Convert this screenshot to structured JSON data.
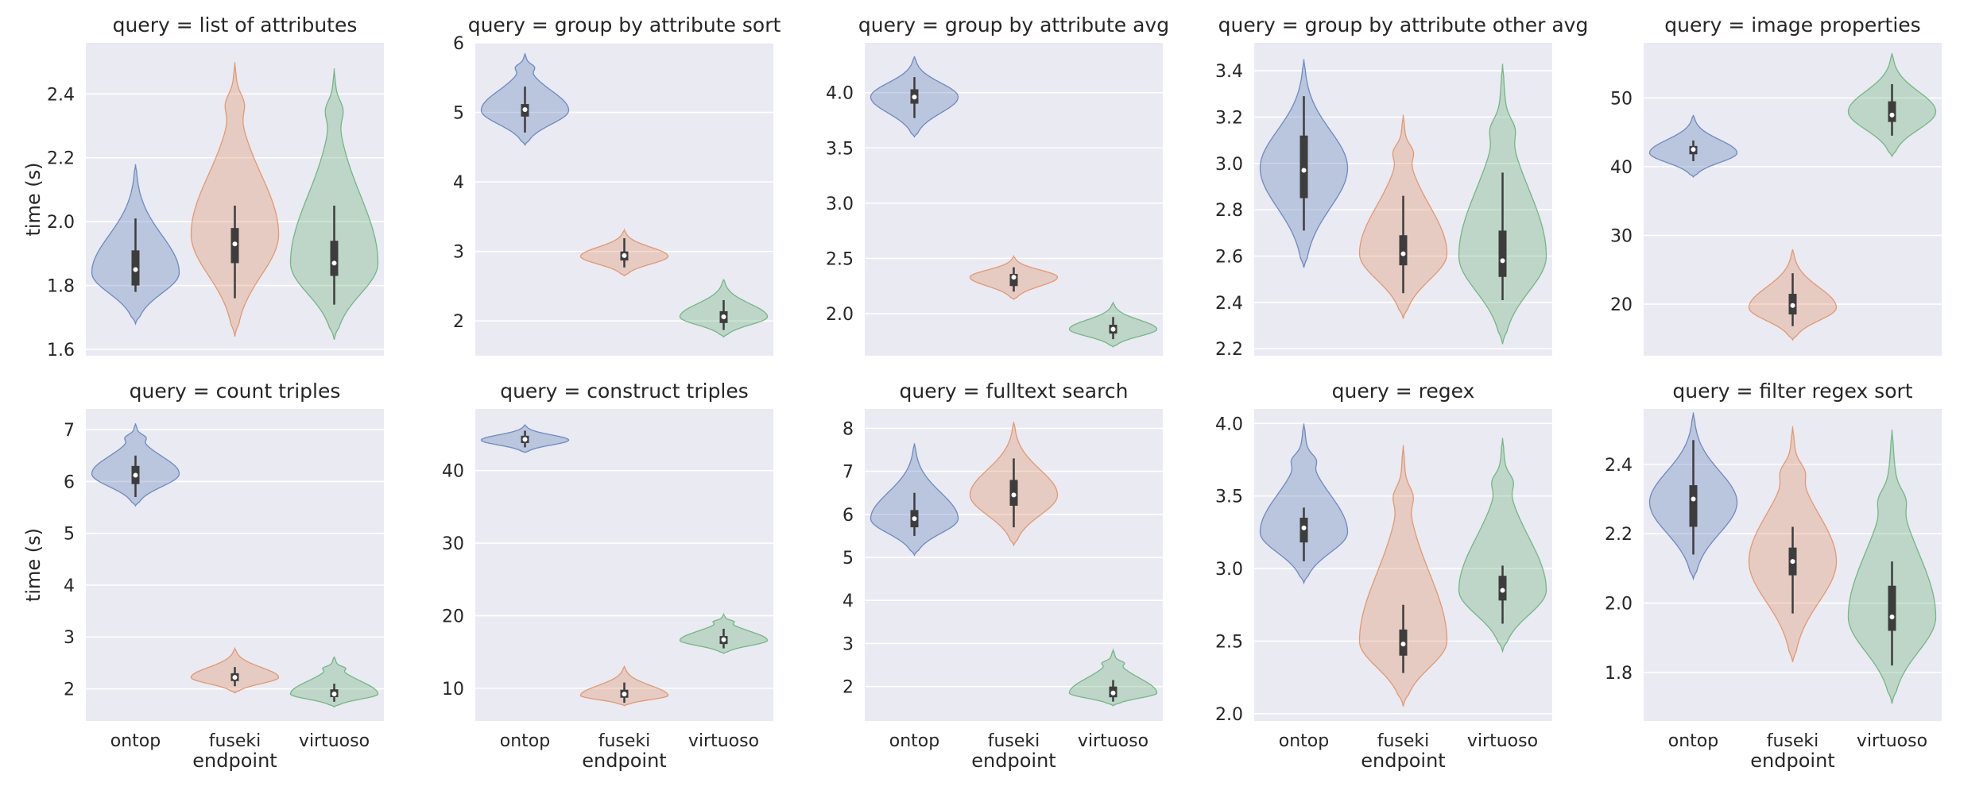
{
  "chart_data": {
    "type": "violin",
    "style": {
      "background": "#eaeaf2",
      "grid": true,
      "grid_color": "#ffffff",
      "series_colors": {
        "ontop": "#4c72b0",
        "fuseki": "#dd8452",
        "virtuoso": "#55a868"
      },
      "fill_opacity": 0.3
    },
    "layout": {
      "rows": 2,
      "cols": 5,
      "share_x_labels_on_bottom_row": true
    },
    "xlabel": "endpoint",
    "ylabel": "time (s)",
    "categories": [
      "ontop",
      "fuseki",
      "virtuoso"
    ],
    "panels": [
      {
        "title": "query = list of attributes",
        "ylim": [
          1.58,
          2.56
        ],
        "yticks": [
          "1.6",
          "1.8",
          "2.0",
          "2.2",
          "2.4"
        ],
        "violins": [
          {
            "category": "ontop",
            "min": 1.68,
            "max": 2.18,
            "peak": 1.84,
            "median": 1.85,
            "q1": 1.8,
            "q3": 1.91,
            "wlo": 1.78,
            "whi": 2.01,
            "tail_bumps": []
          },
          {
            "category": "fuseki",
            "min": 1.64,
            "max": 2.5,
            "peak": 1.96,
            "median": 1.93,
            "q1": 1.87,
            "q3": 1.98,
            "wlo": 1.76,
            "whi": 2.05,
            "tail_bumps": [
              2.37
            ]
          },
          {
            "category": "virtuoso",
            "min": 1.63,
            "max": 2.48,
            "peak": 1.87,
            "median": 1.87,
            "q1": 1.83,
            "q3": 1.94,
            "wlo": 1.74,
            "whi": 2.05,
            "tail_bumps": [
              2.35
            ]
          }
        ]
      },
      {
        "title": "query = group by attribute sort",
        "ylim": [
          1.5,
          6.0
        ],
        "yticks": [
          "2",
          "3",
          "4",
          "5",
          "6"
        ],
        "violins": [
          {
            "category": "ontop",
            "min": 4.53,
            "max": 5.85,
            "peak": 5.03,
            "median": 5.04,
            "q1": 4.94,
            "q3": 5.12,
            "wlo": 4.71,
            "whi": 5.37,
            "tail_bumps": [
              5.65
            ]
          },
          {
            "category": "fuseki",
            "min": 2.65,
            "max": 3.31,
            "peak": 2.93,
            "median": 2.94,
            "q1": 2.87,
            "q3": 3.0,
            "wlo": 2.77,
            "whi": 3.19,
            "tail_bumps": []
          },
          {
            "category": "virtuoso",
            "min": 1.77,
            "max": 2.6,
            "peak": 2.06,
            "median": 2.06,
            "q1": 1.97,
            "q3": 2.14,
            "wlo": 1.87,
            "whi": 2.3,
            "tail_bumps": []
          }
        ]
      },
      {
        "title": "query = group by attribute avg",
        "ylim": [
          1.62,
          4.45
        ],
        "yticks": [
          "2.0",
          "2.5",
          "3.0",
          "3.5",
          "4.0"
        ],
        "violins": [
          {
            "category": "ontop",
            "min": 3.6,
            "max": 4.33,
            "peak": 3.96,
            "median": 3.96,
            "q1": 3.9,
            "q3": 4.03,
            "wlo": 3.77,
            "whi": 4.14,
            "tail_bumps": []
          },
          {
            "category": "fuseki",
            "min": 2.13,
            "max": 2.52,
            "peak": 2.33,
            "median": 2.33,
            "q1": 2.25,
            "q3": 2.36,
            "wlo": 2.2,
            "whi": 2.42,
            "tail_bumps": []
          },
          {
            "category": "virtuoso",
            "min": 1.7,
            "max": 2.1,
            "peak": 1.86,
            "median": 1.86,
            "q1": 1.82,
            "q3": 1.9,
            "wlo": 1.77,
            "whi": 1.97,
            "tail_bumps": []
          }
        ]
      },
      {
        "title": "query = group by attribute other avg",
        "ylim": [
          2.17,
          3.52
        ],
        "yticks": [
          "2.2",
          "2.4",
          "2.6",
          "2.8",
          "3.0",
          "3.2",
          "3.4"
        ],
        "violins": [
          {
            "category": "ontop",
            "min": 2.55,
            "max": 3.45,
            "peak": 2.98,
            "median": 2.97,
            "q1": 2.85,
            "q3": 3.12,
            "wlo": 2.71,
            "whi": 3.29,
            "tail_bumps": []
          },
          {
            "category": "fuseki",
            "min": 2.33,
            "max": 3.21,
            "peak": 2.61,
            "median": 2.61,
            "q1": 2.56,
            "q3": 2.69,
            "wlo": 2.44,
            "whi": 2.86,
            "tail_bumps": [
              3.05
            ]
          },
          {
            "category": "virtuoso",
            "min": 2.22,
            "max": 3.43,
            "peak": 2.6,
            "median": 2.58,
            "q1": 2.51,
            "q3": 2.71,
            "wlo": 2.41,
            "whi": 2.96,
            "tail_bumps": [
              3.15
            ]
          }
        ]
      },
      {
        "title": "query = image properties",
        "ylim": [
          12.5,
          58.0
        ],
        "yticks": [
          "20",
          "30",
          "40",
          "50"
        ],
        "violins": [
          {
            "category": "ontop",
            "min": 38.5,
            "max": 47.5,
            "peak": 42.0,
            "median": 42.5,
            "q1": 41.8,
            "q3": 43.0,
            "wlo": 40.8,
            "whi": 43.8,
            "tail_bumps": []
          },
          {
            "category": "fuseki",
            "min": 14.8,
            "max": 28.0,
            "peak": 19.5,
            "median": 19.8,
            "q1": 18.5,
            "q3": 21.5,
            "wlo": 16.8,
            "whi": 24.5,
            "tail_bumps": []
          },
          {
            "category": "virtuoso",
            "min": 41.5,
            "max": 56.5,
            "peak": 48.0,
            "median": 47.5,
            "q1": 46.5,
            "q3": 49.5,
            "wlo": 44.5,
            "whi": 52.0,
            "tail_bumps": []
          }
        ]
      },
      {
        "title": "query = count triples",
        "ylim": [
          1.38,
          7.4
        ],
        "yticks": [
          "2",
          "3",
          "4",
          "5",
          "6",
          "7"
        ],
        "violins": [
          {
            "category": "ontop",
            "min": 5.53,
            "max": 7.12,
            "peak": 6.15,
            "median": 6.12,
            "q1": 5.95,
            "q3": 6.3,
            "wlo": 5.7,
            "whi": 6.5,
            "tail_bumps": [
              6.85
            ]
          },
          {
            "category": "fuseki",
            "min": 1.92,
            "max": 2.78,
            "peak": 2.22,
            "median": 2.22,
            "q1": 2.15,
            "q3": 2.3,
            "wlo": 2.05,
            "whi": 2.42,
            "tail_bumps": []
          },
          {
            "category": "virtuoso",
            "min": 1.65,
            "max": 2.62,
            "peak": 1.9,
            "median": 1.9,
            "q1": 1.84,
            "q3": 1.99,
            "wlo": 1.75,
            "whi": 2.1,
            "tail_bumps": [
              2.4
            ]
          }
        ]
      },
      {
        "title": "query = construct triples",
        "ylim": [
          5.5,
          48.5
        ],
        "yticks": [
          "10",
          "20",
          "30",
          "40"
        ],
        "violins": [
          {
            "category": "ontop",
            "min": 42.5,
            "max": 46.3,
            "peak": 44.2,
            "median": 44.3,
            "q1": 43.8,
            "q3": 44.8,
            "wlo": 43.2,
            "whi": 45.5,
            "tail_bumps": []
          },
          {
            "category": "fuseki",
            "min": 7.6,
            "max": 13.0,
            "peak": 9.0,
            "median": 9.2,
            "q1": 8.7,
            "q3": 9.8,
            "wlo": 8.0,
            "whi": 10.8,
            "tail_bumps": []
          },
          {
            "category": "virtuoso",
            "min": 14.8,
            "max": 20.2,
            "peak": 16.6,
            "median": 16.7,
            "q1": 16.1,
            "q3": 17.2,
            "wlo": 15.5,
            "whi": 18.2,
            "tail_bumps": [
              19.2
            ]
          }
        ]
      },
      {
        "title": "query = fulltext search",
        "ylim": [
          1.2,
          8.45
        ],
        "yticks": [
          "2",
          "3",
          "4",
          "5",
          "6",
          "7",
          "8"
        ],
        "violins": [
          {
            "category": "ontop",
            "min": 5.05,
            "max": 7.65,
            "peak": 5.9,
            "median": 5.9,
            "q1": 5.7,
            "q3": 6.1,
            "wlo": 5.5,
            "whi": 6.5,
            "tail_bumps": []
          },
          {
            "category": "fuseki",
            "min": 5.28,
            "max": 8.15,
            "peak": 6.45,
            "median": 6.45,
            "q1": 6.2,
            "q3": 6.8,
            "wlo": 5.7,
            "whi": 7.3,
            "tail_bumps": []
          },
          {
            "category": "virtuoso",
            "min": 1.55,
            "max": 2.85,
            "peak": 1.85,
            "median": 1.85,
            "q1": 1.75,
            "q3": 2.0,
            "wlo": 1.65,
            "whi": 2.15,
            "tail_bumps": [
              2.55
            ]
          }
        ]
      },
      {
        "title": "query = regex",
        "ylim": [
          1.95,
          4.1
        ],
        "yticks": [
          "2.0",
          "2.5",
          "3.0",
          "3.5",
          "4.0"
        ],
        "violins": [
          {
            "category": "ontop",
            "min": 2.9,
            "max": 4.0,
            "peak": 3.25,
            "median": 3.28,
            "q1": 3.18,
            "q3": 3.35,
            "wlo": 3.05,
            "whi": 3.42,
            "tail_bumps": [
              3.75
            ]
          },
          {
            "category": "fuseki",
            "min": 2.05,
            "max": 3.85,
            "peak": 2.5,
            "median": 2.48,
            "q1": 2.4,
            "q3": 2.58,
            "wlo": 2.28,
            "whi": 2.75,
            "tail_bumps": [
              3.5
            ]
          },
          {
            "category": "virtuoso",
            "min": 2.43,
            "max": 3.9,
            "peak": 2.85,
            "median": 2.85,
            "q1": 2.78,
            "q3": 2.95,
            "wlo": 2.62,
            "whi": 3.02,
            "tail_bumps": [
              3.6
            ]
          }
        ]
      },
      {
        "title": "query = filter regex sort",
        "ylim": [
          1.66,
          2.56
        ],
        "yticks": [
          "1.8",
          "2.0",
          "2.2",
          "2.4"
        ],
        "violins": [
          {
            "category": "ontop",
            "min": 2.07,
            "max": 2.55,
            "peak": 2.29,
            "median": 2.3,
            "q1": 2.22,
            "q3": 2.34,
            "wlo": 2.14,
            "whi": 2.47,
            "tail_bumps": []
          },
          {
            "category": "fuseki",
            "min": 1.83,
            "max": 2.51,
            "peak": 2.12,
            "median": 2.12,
            "q1": 2.08,
            "q3": 2.16,
            "wlo": 1.97,
            "whi": 2.22,
            "tail_bumps": [
              2.38
            ]
          },
          {
            "category": "virtuoso",
            "min": 1.71,
            "max": 2.5,
            "peak": 1.96,
            "median": 1.96,
            "q1": 1.92,
            "q3": 2.05,
            "wlo": 1.82,
            "whi": 2.12,
            "tail_bumps": [
              2.3
            ]
          }
        ]
      }
    ]
  }
}
